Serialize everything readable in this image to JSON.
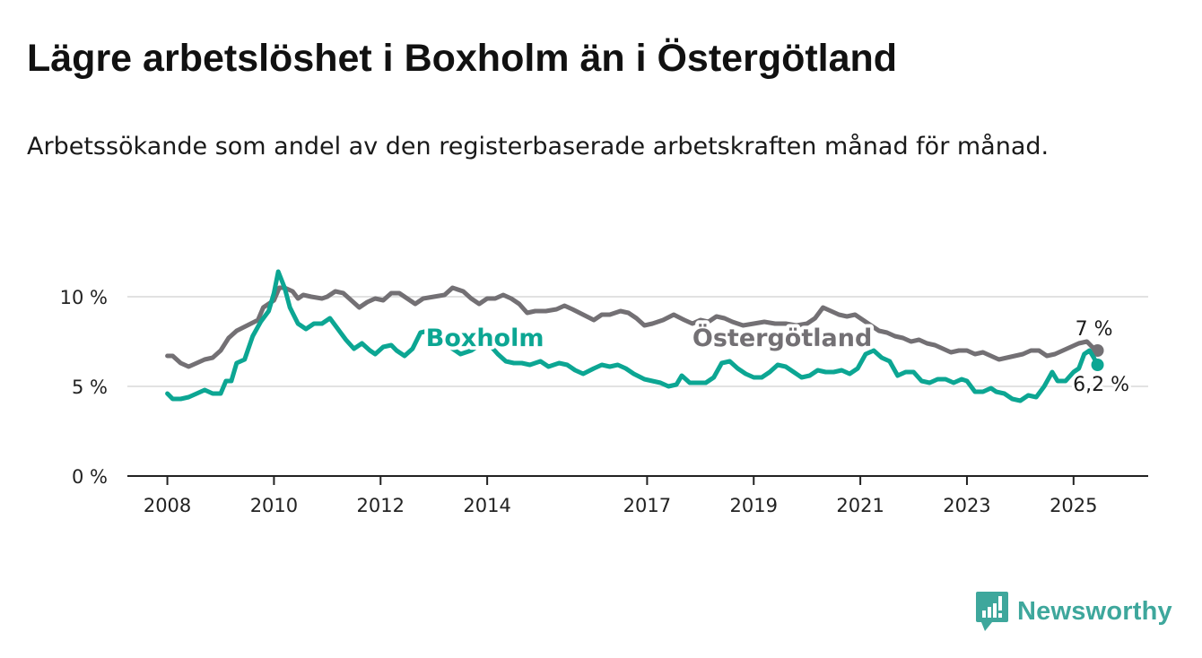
{
  "title": "Lägre arbetslöshet i Boxholm än i Östergötland",
  "subtitle": "Arbetssökande som andel av den registerbaserade arbetskraften månad för månad.",
  "brand": {
    "name": "Newsworthy",
    "color": "#3ea79c"
  },
  "chart_data": {
    "type": "line",
    "x_unit": "year",
    "xlim": [
      2007.25,
      2026.4
    ],
    "ylim": [
      0,
      10
    ],
    "y_ticks": [
      {
        "value": 0,
        "label": "0 %"
      },
      {
        "value": 5,
        "label": "5 %"
      },
      {
        "value": 10,
        "label": "10 %"
      }
    ],
    "x_ticks": [
      {
        "value": 2008,
        "label": "2008"
      },
      {
        "value": 2010,
        "label": "2010"
      },
      {
        "value": 2012,
        "label": "2012"
      },
      {
        "value": 2014,
        "label": "2014"
      },
      {
        "value": 2017,
        "label": "2017"
      },
      {
        "value": 2019,
        "label": "2019"
      },
      {
        "value": 2021,
        "label": "2021"
      },
      {
        "value": 2023,
        "label": "2023"
      },
      {
        "value": 2025,
        "label": "2025"
      }
    ],
    "grid": "horizontal",
    "series": [
      {
        "name": "Östergötland",
        "color": "#737074",
        "label_at": [
          2017.85,
          7.8
        ],
        "end_label": "7 %",
        "points": [
          [
            2008.0,
            6.7
          ],
          [
            2008.1,
            6.7
          ],
          [
            2008.25,
            6.3
          ],
          [
            2008.4,
            6.1
          ],
          [
            2008.55,
            6.3
          ],
          [
            2008.7,
            6.5
          ],
          [
            2008.85,
            6.6
          ],
          [
            2009.0,
            7.0
          ],
          [
            2009.15,
            7.7
          ],
          [
            2009.3,
            8.1
          ],
          [
            2009.5,
            8.4
          ],
          [
            2009.7,
            8.7
          ],
          [
            2009.8,
            9.4
          ],
          [
            2010.0,
            9.8
          ],
          [
            2010.1,
            10.5
          ],
          [
            2010.2,
            10.5
          ],
          [
            2010.35,
            10.3
          ],
          [
            2010.45,
            9.9
          ],
          [
            2010.55,
            10.1
          ],
          [
            2010.7,
            10.0
          ],
          [
            2010.9,
            9.9
          ],
          [
            2011.0,
            10.0
          ],
          [
            2011.15,
            10.3
          ],
          [
            2011.3,
            10.2
          ],
          [
            2011.45,
            9.8
          ],
          [
            2011.6,
            9.4
          ],
          [
            2011.75,
            9.7
          ],
          [
            2011.9,
            9.9
          ],
          [
            2012.05,
            9.8
          ],
          [
            2012.2,
            10.2
          ],
          [
            2012.35,
            10.2
          ],
          [
            2012.5,
            9.9
          ],
          [
            2012.65,
            9.6
          ],
          [
            2012.8,
            9.9
          ],
          [
            2013.0,
            10.0
          ],
          [
            2013.2,
            10.1
          ],
          [
            2013.35,
            10.5
          ],
          [
            2013.55,
            10.3
          ],
          [
            2013.7,
            9.9
          ],
          [
            2013.85,
            9.6
          ],
          [
            2014.0,
            9.9
          ],
          [
            2014.15,
            9.9
          ],
          [
            2014.3,
            10.1
          ],
          [
            2014.45,
            9.9
          ],
          [
            2014.6,
            9.6
          ],
          [
            2014.75,
            9.1
          ],
          [
            2014.9,
            9.2
          ],
          [
            2015.1,
            9.2
          ],
          [
            2015.3,
            9.3
          ],
          [
            2015.45,
            9.5
          ],
          [
            2015.6,
            9.3
          ],
          [
            2015.8,
            9.0
          ],
          [
            2016.0,
            8.7
          ],
          [
            2016.15,
            9.0
          ],
          [
            2016.3,
            9.0
          ],
          [
            2016.5,
            9.2
          ],
          [
            2016.65,
            9.1
          ],
          [
            2016.8,
            8.8
          ],
          [
            2016.95,
            8.4
          ],
          [
            2017.1,
            8.5
          ],
          [
            2017.3,
            8.7
          ],
          [
            2017.5,
            9.0
          ],
          [
            2017.7,
            8.7
          ],
          [
            2017.85,
            8.5
          ],
          [
            2018.0,
            8.7
          ],
          [
            2018.15,
            8.6
          ],
          [
            2018.3,
            8.9
          ],
          [
            2018.45,
            8.8
          ],
          [
            2018.6,
            8.6
          ],
          [
            2018.8,
            8.4
          ],
          [
            2019.0,
            8.5
          ],
          [
            2019.2,
            8.6
          ],
          [
            2019.4,
            8.5
          ],
          [
            2019.6,
            8.5
          ],
          [
            2019.8,
            8.4
          ],
          [
            2020.0,
            8.5
          ],
          [
            2020.15,
            8.8
          ],
          [
            2020.3,
            9.4
          ],
          [
            2020.45,
            9.2
          ],
          [
            2020.6,
            9.0
          ],
          [
            2020.75,
            8.9
          ],
          [
            2020.9,
            9.0
          ],
          [
            2021.05,
            8.7
          ],
          [
            2021.2,
            8.4
          ],
          [
            2021.35,
            8.1
          ],
          [
            2021.5,
            8.0
          ],
          [
            2021.65,
            7.8
          ],
          [
            2021.8,
            7.7
          ],
          [
            2021.95,
            7.5
          ],
          [
            2022.1,
            7.6
          ],
          [
            2022.25,
            7.4
          ],
          [
            2022.4,
            7.3
          ],
          [
            2022.55,
            7.1
          ],
          [
            2022.7,
            6.9
          ],
          [
            2022.85,
            7.0
          ],
          [
            2023.0,
            7.0
          ],
          [
            2023.15,
            6.8
          ],
          [
            2023.3,
            6.9
          ],
          [
            2023.45,
            6.7
          ],
          [
            2023.6,
            6.5
          ],
          [
            2023.75,
            6.6
          ],
          [
            2023.9,
            6.7
          ],
          [
            2024.05,
            6.8
          ],
          [
            2024.2,
            7.0
          ],
          [
            2024.35,
            7.0
          ],
          [
            2024.5,
            6.7
          ],
          [
            2024.65,
            6.8
          ],
          [
            2024.8,
            7.0
          ],
          [
            2024.95,
            7.2
          ],
          [
            2025.1,
            7.4
          ],
          [
            2025.25,
            7.5
          ],
          [
            2025.35,
            7.2
          ],
          [
            2025.45,
            7.0
          ]
        ]
      },
      {
        "name": "Boxholm",
        "color": "#0ca693",
        "label_at": [
          2012.85,
          7.8
        ],
        "end_label": "6,2 %",
        "points": [
          [
            2008.0,
            4.6
          ],
          [
            2008.1,
            4.3
          ],
          [
            2008.25,
            4.3
          ],
          [
            2008.4,
            4.4
          ],
          [
            2008.55,
            4.6
          ],
          [
            2008.7,
            4.8
          ],
          [
            2008.85,
            4.6
          ],
          [
            2009.0,
            4.6
          ],
          [
            2009.1,
            5.3
          ],
          [
            2009.2,
            5.3
          ],
          [
            2009.3,
            6.3
          ],
          [
            2009.45,
            6.5
          ],
          [
            2009.6,
            7.8
          ],
          [
            2009.75,
            8.6
          ],
          [
            2009.9,
            9.2
          ],
          [
            2010.0,
            10.2
          ],
          [
            2010.08,
            11.4
          ],
          [
            2010.2,
            10.5
          ],
          [
            2010.3,
            9.4
          ],
          [
            2010.45,
            8.5
          ],
          [
            2010.6,
            8.2
          ],
          [
            2010.75,
            8.5
          ],
          [
            2010.9,
            8.5
          ],
          [
            2011.05,
            8.8
          ],
          [
            2011.2,
            8.2
          ],
          [
            2011.35,
            7.6
          ],
          [
            2011.5,
            7.1
          ],
          [
            2011.65,
            7.4
          ],
          [
            2011.8,
            7.0
          ],
          [
            2011.9,
            6.8
          ],
          [
            2012.05,
            7.2
          ],
          [
            2012.2,
            7.3
          ],
          [
            2012.3,
            7.0
          ],
          [
            2012.45,
            6.7
          ],
          [
            2012.6,
            7.1
          ],
          [
            2012.75,
            8.0
          ],
          [
            2012.9,
            8.1
          ],
          [
            2013.1,
            7.7
          ],
          [
            2013.3,
            7.2
          ],
          [
            2013.5,
            6.8
          ],
          [
            2013.7,
            7.0
          ],
          [
            2013.9,
            7.4
          ],
          [
            2014.05,
            7.3
          ],
          [
            2014.2,
            6.8
          ],
          [
            2014.35,
            6.4
          ],
          [
            2014.5,
            6.3
          ],
          [
            2014.65,
            6.3
          ],
          [
            2014.8,
            6.2
          ],
          [
            2015.0,
            6.4
          ],
          [
            2015.15,
            6.1
          ],
          [
            2015.35,
            6.3
          ],
          [
            2015.5,
            6.2
          ],
          [
            2015.65,
            5.9
          ],
          [
            2015.8,
            5.7
          ],
          [
            2016.0,
            6.0
          ],
          [
            2016.15,
            6.2
          ],
          [
            2016.3,
            6.1
          ],
          [
            2016.45,
            6.2
          ],
          [
            2016.6,
            6.0
          ],
          [
            2016.75,
            5.7
          ],
          [
            2016.95,
            5.4
          ],
          [
            2017.1,
            5.3
          ],
          [
            2017.25,
            5.2
          ],
          [
            2017.4,
            5.0
          ],
          [
            2017.55,
            5.1
          ],
          [
            2017.65,
            5.6
          ],
          [
            2017.8,
            5.2
          ],
          [
            2017.95,
            5.2
          ],
          [
            2018.1,
            5.2
          ],
          [
            2018.25,
            5.5
          ],
          [
            2018.4,
            6.3
          ],
          [
            2018.55,
            6.4
          ],
          [
            2018.7,
            6.0
          ],
          [
            2018.85,
            5.7
          ],
          [
            2019.0,
            5.5
          ],
          [
            2019.15,
            5.5
          ],
          [
            2019.3,
            5.8
          ],
          [
            2019.45,
            6.2
          ],
          [
            2019.6,
            6.1
          ],
          [
            2019.75,
            5.8
          ],
          [
            2019.9,
            5.5
          ],
          [
            2020.05,
            5.6
          ],
          [
            2020.2,
            5.9
          ],
          [
            2020.35,
            5.8
          ],
          [
            2020.5,
            5.8
          ],
          [
            2020.65,
            5.9
          ],
          [
            2020.8,
            5.7
          ],
          [
            2020.95,
            6.0
          ],
          [
            2021.1,
            6.8
          ],
          [
            2021.25,
            7.0
          ],
          [
            2021.4,
            6.6
          ],
          [
            2021.55,
            6.4
          ],
          [
            2021.7,
            5.6
          ],
          [
            2021.85,
            5.8
          ],
          [
            2022.0,
            5.8
          ],
          [
            2022.15,
            5.3
          ],
          [
            2022.3,
            5.2
          ],
          [
            2022.45,
            5.4
          ],
          [
            2022.6,
            5.4
          ],
          [
            2022.75,
            5.2
          ],
          [
            2022.9,
            5.4
          ],
          [
            2023.0,
            5.3
          ],
          [
            2023.15,
            4.7
          ],
          [
            2023.3,
            4.7
          ],
          [
            2023.45,
            4.9
          ],
          [
            2023.55,
            4.7
          ],
          [
            2023.7,
            4.6
          ],
          [
            2023.85,
            4.3
          ],
          [
            2024.0,
            4.2
          ],
          [
            2024.15,
            4.5
          ],
          [
            2024.3,
            4.4
          ],
          [
            2024.45,
            5.0
          ],
          [
            2024.6,
            5.8
          ],
          [
            2024.7,
            5.3
          ],
          [
            2024.85,
            5.3
          ],
          [
            2025.0,
            5.8
          ],
          [
            2025.1,
            6.0
          ],
          [
            2025.2,
            6.8
          ],
          [
            2025.3,
            7.0
          ],
          [
            2025.38,
            6.6
          ],
          [
            2025.45,
            6.2
          ]
        ]
      }
    ]
  }
}
